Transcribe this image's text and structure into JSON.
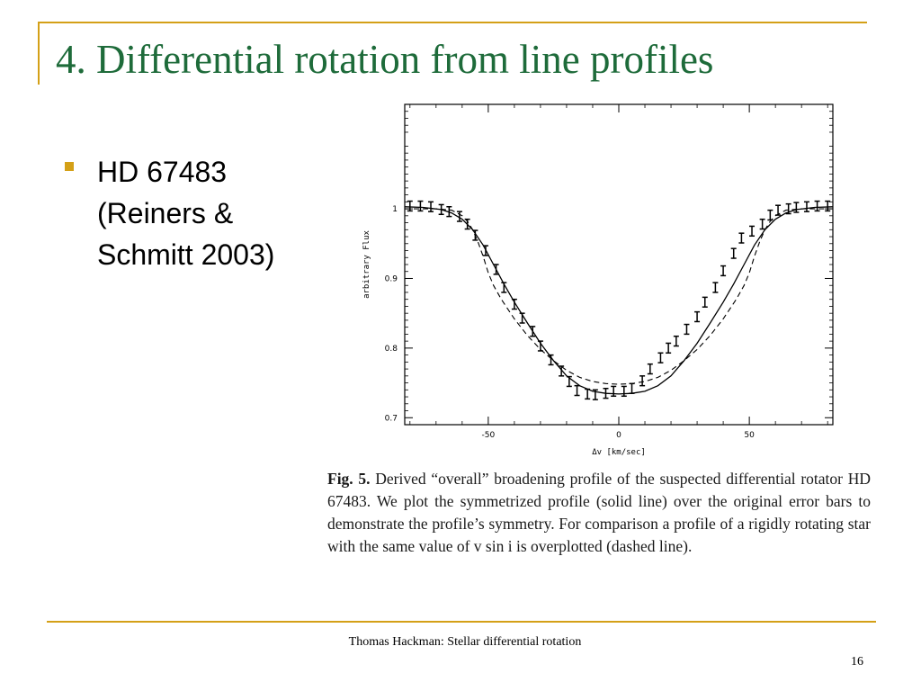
{
  "slide": {
    "title": "4. Differential rotation from line profiles",
    "bullet": "HD 67483\n(Reiners &\nSchmitt 2003)",
    "footer": "Thomas Hackman: Stellar differential rotation",
    "page_number": "16",
    "accent_color": "#d4a017",
    "title_color": "#1e6b3a"
  },
  "caption": {
    "label": "Fig. 5.",
    "text": "Derived “overall” broadening profile of the suspected differential rotator HD 67483. We plot the symmetrized profile (solid line) over the original error bars to demonstrate the profile’s symmetry. For comparison a profile of a rigidly rotating star with the same value of v sin i is overplotted (dashed line)."
  },
  "chart_data": {
    "type": "line",
    "title": "",
    "xlabel": "Δv [km/sec]",
    "ylabel": "arbitrary Flux",
    "xlim": [
      -82,
      82
    ],
    "ylim": [
      0.69,
      1.15
    ],
    "xticks": [
      -50,
      0,
      50
    ],
    "xtick_labels": [
      "-50",
      "0",
      "50"
    ],
    "yticks": [
      0.7,
      0.8,
      0.9,
      1.0
    ],
    "ytick_labels": [
      "0.7",
      "0.8",
      "0.9",
      "1"
    ],
    "grid": false,
    "series": [
      {
        "style": "errorbar",
        "x": [
          -80,
          -76,
          -72,
          -68,
          -65,
          -61,
          -58,
          -55,
          -51,
          -47,
          -44,
          -40,
          -37,
          -33,
          -30,
          -26,
          -22,
          -19,
          -16,
          -12,
          -9,
          -5,
          -2,
          2,
          5,
          9,
          12,
          16,
          19,
          22,
          26,
          30,
          33,
          37,
          40,
          44,
          47,
          51,
          55,
          58,
          61,
          65,
          68,
          72,
          76,
          80
        ],
        "y": [
          1.004,
          1.004,
          1.003,
          0.999,
          0.996,
          0.989,
          0.978,
          0.962,
          0.94,
          0.913,
          0.887,
          0.863,
          0.843,
          0.824,
          0.803,
          0.783,
          0.767,
          0.752,
          0.739,
          0.734,
          0.733,
          0.735,
          0.738,
          0.738,
          0.742,
          0.753,
          0.77,
          0.786,
          0.8,
          0.81,
          0.827,
          0.845,
          0.866,
          0.887,
          0.911,
          0.936,
          0.958,
          0.968,
          0.978,
          0.991,
          0.998,
          1.0,
          1.002,
          1.003,
          1.004,
          1.004
        ],
        "err": 0.007
      },
      {
        "name": "",
        "style": "solid",
        "x": [
          -82,
          -75,
          -68,
          -64,
          -60,
          -56,
          -52,
          -48,
          -44,
          -40,
          -35,
          -30,
          -25,
          -20,
          -15,
          -10,
          -5,
          0,
          5,
          10,
          15,
          20,
          25,
          30,
          35,
          40,
          44,
          48,
          52,
          56,
          60,
          64,
          68,
          75,
          82
        ],
        "y": [
          1.003,
          1.002,
          0.999,
          0.994,
          0.985,
          0.97,
          0.948,
          0.92,
          0.892,
          0.866,
          0.836,
          0.807,
          0.782,
          0.76,
          0.746,
          0.738,
          0.735,
          0.734,
          0.735,
          0.738,
          0.746,
          0.76,
          0.782,
          0.807,
          0.836,
          0.866,
          0.892,
          0.92,
          0.948,
          0.97,
          0.985,
          0.994,
          0.999,
          1.002,
          1.003
        ]
      },
      {
        "name": "",
        "style": "dashed",
        "x": [
          -82,
          -70,
          -64,
          -60,
          -58,
          -56,
          -54,
          -52,
          -50,
          -48,
          -45,
          -40,
          -35,
          -30,
          -25,
          -20,
          -15,
          -10,
          -5,
          0,
          5,
          10,
          15,
          20,
          25,
          30,
          35,
          40,
          45,
          48,
          50,
          52,
          54,
          56,
          58,
          60,
          64,
          70,
          82
        ],
        "y": [
          1.0,
          1.0,
          0.998,
          0.99,
          0.982,
          0.97,
          0.953,
          0.932,
          0.908,
          0.89,
          0.87,
          0.842,
          0.818,
          0.798,
          0.782,
          0.768,
          0.758,
          0.752,
          0.749,
          0.748,
          0.749,
          0.752,
          0.758,
          0.768,
          0.782,
          0.798,
          0.818,
          0.842,
          0.87,
          0.89,
          0.908,
          0.932,
          0.953,
          0.97,
          0.982,
          0.99,
          0.998,
          1.0,
          1.0
        ]
      }
    ]
  }
}
